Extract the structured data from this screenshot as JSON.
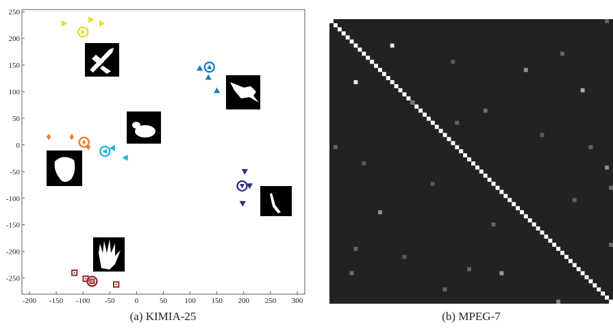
{
  "chart_data": [
    {
      "type": "scatter",
      "caption": "(a) KIMIA-25",
      "xlim": [
        -214,
        314
      ],
      "ylim": [
        -280,
        254
      ],
      "xticks": [
        -200,
        -150,
        -100,
        -50,
        0,
        50,
        100,
        150,
        200,
        250,
        300
      ],
      "yticks": [
        -250,
        -200,
        -150,
        -100,
        -50,
        0,
        50,
        100,
        150,
        200,
        250
      ],
      "series": [
        {
          "color": "#e6dc1e",
          "marker": "triangle-right",
          "x": [
            -135,
            -100,
            -85,
            -65
          ],
          "y": [
            228,
            212,
            235,
            228
          ],
          "highlight": 1
        },
        {
          "color": "#1a7fc0",
          "marker": "triangle-up",
          "x": [
            118,
            136,
            134,
            150
          ],
          "y": [
            144,
            146,
            127,
            102
          ],
          "highlight": 1
        },
        {
          "color": "#f07b2a",
          "marker": "diamond",
          "x": [
            -164,
            -121,
            -98,
            -90
          ],
          "y": [
            15,
            15,
            5,
            -4
          ],
          "highlight": 2
        },
        {
          "color": "#1fb8d8",
          "marker": "triangle-left",
          "x": [
            -59,
            -45,
            -21
          ],
          "y": [
            -12,
            -6,
            -24
          ],
          "highlight": 0
        },
        {
          "color": "#2b2f8f",
          "marker": "triangle-down",
          "x": [
            202,
            197,
            211,
            198
          ],
          "y": [
            -50,
            -77,
            -77,
            -110
          ],
          "highlight": 1
        },
        {
          "color": "#9c2a2a",
          "marker": "square",
          "x": [
            -116,
            -95,
            -83,
            -38
          ],
          "y": [
            -240,
            -251,
            -256,
            -262
          ],
          "highlight": 2
        }
      ]
    },
    {
      "type": "heatmap",
      "caption": "(b) MPEG-7",
      "n": 70,
      "background": 0,
      "diagonal": 1,
      "cells": [
        [
          6,
          15,
          0.9
        ],
        [
          15,
          6,
          0.9
        ],
        [
          12,
          48,
          0.5
        ],
        [
          17,
          62,
          0.6
        ],
        [
          22,
          38,
          0.35
        ],
        [
          8,
          57,
          0.3
        ],
        [
          0,
          68,
          0.3
        ],
        [
          20,
          20,
          0.4
        ],
        [
          25,
          31,
          0.3
        ],
        [
          47,
          12,
          0.5
        ],
        [
          56,
          6,
          0.3
        ],
        [
          62,
          5,
          0.35
        ],
        [
          62,
          42,
          0.55
        ],
        [
          69,
          56,
          0.45
        ],
        [
          61,
          34,
          0.3
        ],
        [
          66,
          28,
          0.3
        ],
        [
          36,
          68,
          0.5
        ],
        [
          31,
          64,
          0.3
        ],
        [
          31,
          1,
          0.3
        ],
        [
          41,
          69,
          0.35
        ],
        [
          55,
          69,
          0.35
        ],
        [
          40,
          25,
          0.25
        ],
        [
          50,
          40,
          0.3
        ],
        [
          28,
          52,
          0.25
        ],
        [
          44,
          60,
          0.3
        ],
        [
          58,
          18,
          0.25
        ],
        [
          10,
          30,
          0.25
        ],
        [
          35,
          8,
          0.25
        ]
      ]
    }
  ]
}
